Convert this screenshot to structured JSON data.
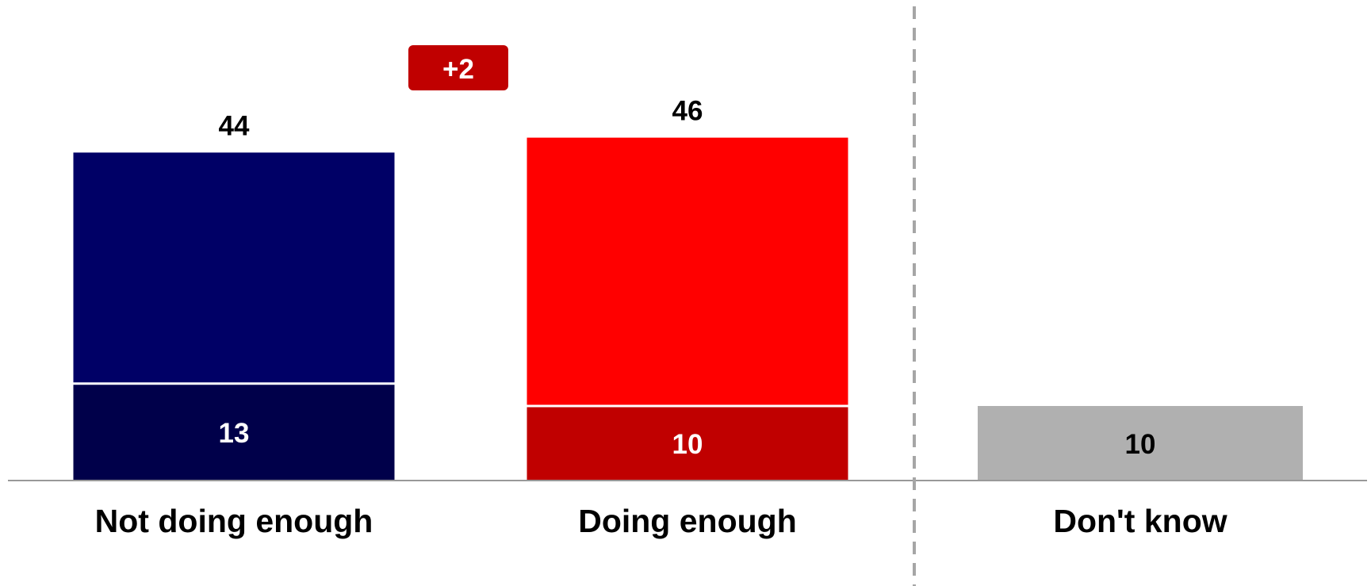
{
  "chart_data": {
    "type": "bar",
    "stacked_inner": true,
    "categories": [
      "Not doing enough",
      "Doing enough",
      "Don't know"
    ],
    "totals": [
      44,
      46,
      10
    ],
    "inner_values": [
      13,
      10,
      null
    ],
    "colors": {
      "outer": [
        "#000066",
        "#ff0000",
        "#b0b0b0"
      ],
      "inner": [
        "#00004a",
        "#c00000",
        null
      ],
      "axis": "#999999",
      "divider": "#a6a6a6",
      "badge": "#c00000"
    },
    "badge": {
      "text": "+2"
    },
    "ylim": [
      0,
      50
    ],
    "grid": false,
    "legend": "none",
    "divider_after_category_index": 1
  }
}
